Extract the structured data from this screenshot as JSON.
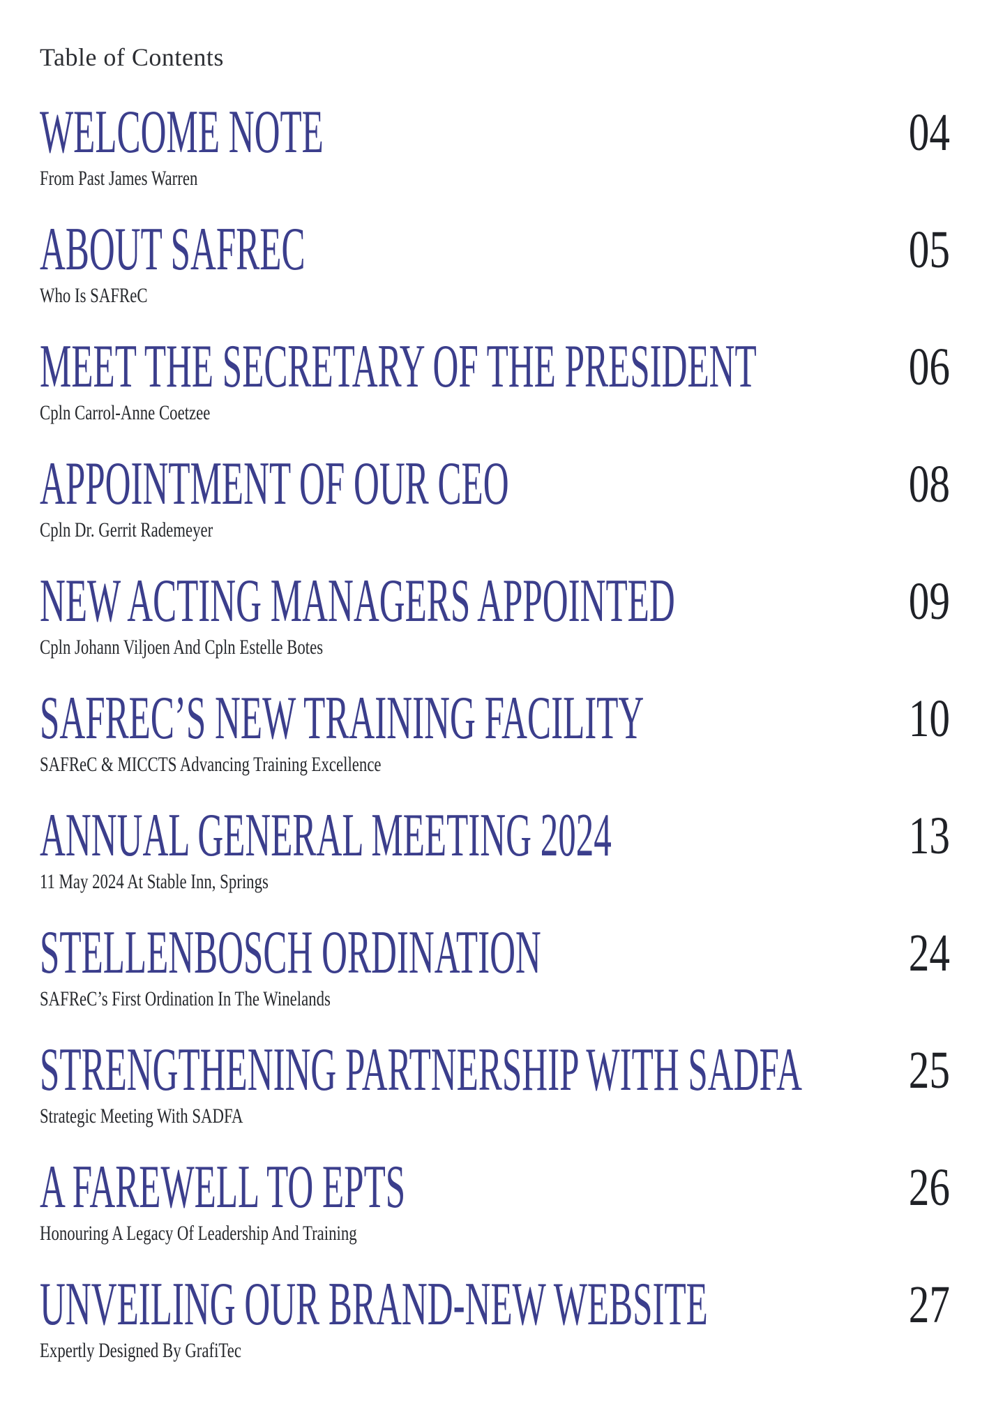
{
  "page": {
    "header": "Table of Contents",
    "colors": {
      "title_blue": "#3b3e8c",
      "text_dark": "#212329",
      "background": "#ffffff"
    },
    "entries": [
      {
        "title": "WELCOME NOTE",
        "subtitle": "From Past James Warren",
        "page": "04"
      },
      {
        "title": "ABOUT SAFREC",
        "subtitle": "Who Is SAFReC",
        "page": "05"
      },
      {
        "title": "MEET THE SECRETARY OF THE PRESIDENT",
        "subtitle": "Cpln Carrol-Anne Coetzee",
        "page": "06"
      },
      {
        "title": "APPOINTMENT OF OUR CEO",
        "subtitle": "Cpln Dr. Gerrit Rademeyer",
        "page": "08"
      },
      {
        "title": "NEW ACTING MANAGERS APPOINTED",
        "subtitle": "Cpln Johann Viljoen And Cpln Estelle Botes",
        "page": "09"
      },
      {
        "title": "SAFREC’S NEW TRAINING FACILITY",
        "subtitle": "SAFReC & MICCTS Advancing Training Excellence",
        "page": "10"
      },
      {
        "title": "ANNUAL GENERAL MEETING 2024",
        "subtitle": "11 May 2024 At Stable Inn, Springs",
        "page": "13"
      },
      {
        "title": "STELLENBOSCH ORDINATION",
        "subtitle": "SAFReC’s First Ordination In The Winelands",
        "page": "24"
      },
      {
        "title": "STRENGTHENING PARTNERSHIP WITH SADFA",
        "subtitle": "Strategic Meeting With SADFA",
        "page": "25"
      },
      {
        "title": "A FAREWELL TO EPTS",
        "subtitle": "Honouring A Legacy Of Leadership And Training",
        "page": "26"
      },
      {
        "title": "UNVEILING OUR BRAND-NEW WEBSITE",
        "subtitle": "Expertly Designed By GrafiTec",
        "page": "27"
      }
    ]
  }
}
